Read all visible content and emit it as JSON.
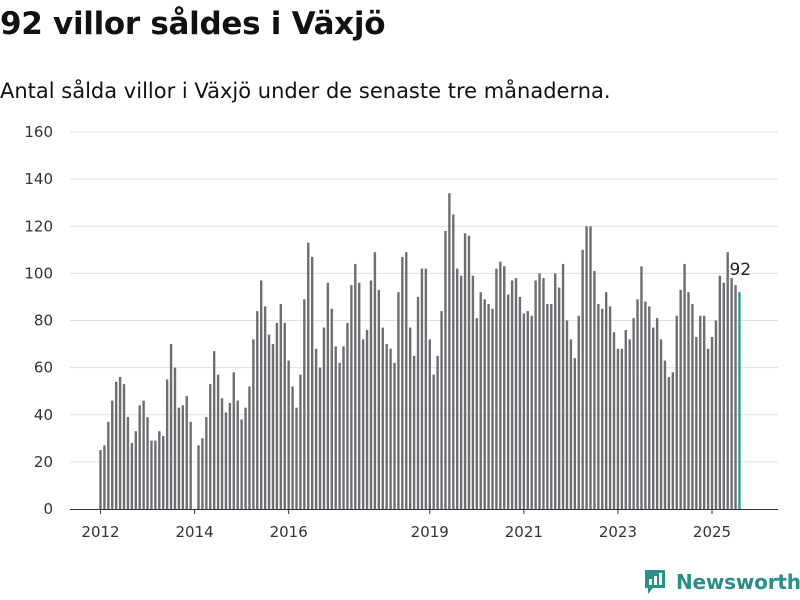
{
  "title": "92 villor såldes i Växjö",
  "subtitle": "Antal sålda villor i Växjö under de senaste tre månaderna.",
  "brand": "Newsworthy",
  "colors": {
    "bar": "#6e6d72",
    "highlight": "#2a9d8f",
    "grid": "#e0e0e0",
    "axis": "#333333",
    "brand": "#2a8f86"
  },
  "chart_data": {
    "type": "bar",
    "title": "92 villor såldes i Växjö",
    "subtitle": "Antal sålda villor i Växjö under de senaste tre månaderna.",
    "xlabel": "",
    "ylabel": "",
    "ylim": [
      0,
      160
    ],
    "yticks": [
      0,
      20,
      40,
      60,
      80,
      100,
      120,
      140,
      160
    ],
    "xticks": [
      "2012",
      "2014",
      "2016",
      "2019",
      "2021",
      "2023",
      "2025"
    ],
    "grid": true,
    "legend": "none",
    "start": "2012-01",
    "frequency": "monthly",
    "highlight_last": true,
    "last_label": "92",
    "values": [
      25,
      27,
      37,
      46,
      54,
      56,
      53,
      39,
      28,
      33,
      44,
      46,
      39,
      29,
      29,
      33,
      31,
      55,
      70,
      60,
      43,
      44,
      48,
      37,
      0,
      27,
      30,
      39,
      53,
      67,
      57,
      47,
      41,
      45,
      58,
      46,
      38,
      43,
      52,
      72,
      84,
      97,
      86,
      74,
      70,
      79,
      87,
      79,
      63,
      52,
      43,
      57,
      89,
      113,
      107,
      68,
      60,
      77,
      96,
      85,
      69,
      62,
      69,
      79,
      95,
      104,
      96,
      72,
      76,
      97,
      109,
      93,
      77,
      70,
      68,
      62,
      92,
      107,
      109,
      77,
      65,
      90,
      102,
      102,
      72,
      57,
      65,
      84,
      118,
      134,
      125,
      102,
      99,
      117,
      116,
      99,
      81,
      92,
      89,
      87,
      85,
      102,
      105,
      103,
      91,
      97,
      98,
      90,
      83,
      84,
      82,
      97,
      100,
      98,
      87,
      87,
      100,
      94,
      104,
      80,
      72,
      64,
      82,
      110,
      120,
      120,
      101,
      87,
      85,
      92,
      86,
      75,
      68,
      68,
      76,
      72,
      81,
      89,
      103,
      88,
      86,
      77,
      81,
      72,
      63,
      56,
      58,
      82,
      93,
      104,
      92,
      87,
      73,
      82,
      82,
      68,
      73,
      80,
      99,
      96,
      109,
      98,
      95,
      92
    ]
  }
}
